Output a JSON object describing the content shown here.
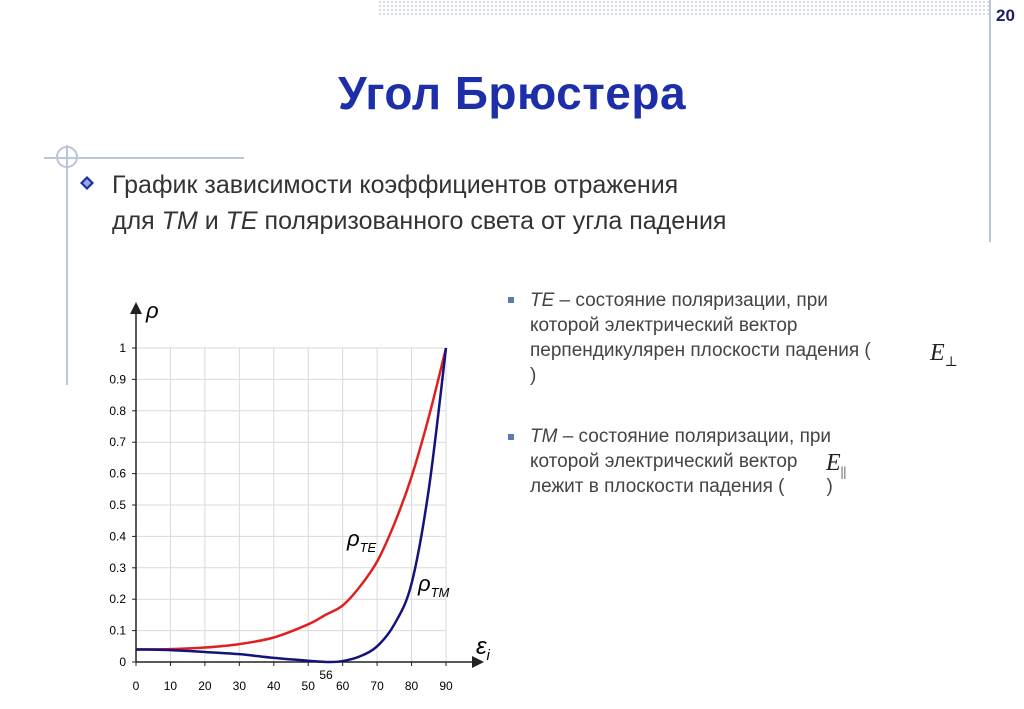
{
  "page_number": "20",
  "title": "Угол Брюстера",
  "main_bullet": {
    "line1": "График зависимости коэффициентов отражения",
    "line2_pre": "для ",
    "line2_tm": "TM",
    "line2_mid": " и ",
    "line2_te": "TE",
    "line2_post": " поляризованного света от угла падения"
  },
  "te_item": {
    "abbr": "TE",
    "line1": " – состояние поляризации, при",
    "line2": "которой электрический вектор",
    "line3": "перпендикулярен плоскости падения (",
    "line4": ")",
    "vector_symbol": "E",
    "vector_sub": "⊥"
  },
  "tm_item": {
    "abbr": "TM",
    "line1": " – состояние поляризации, при",
    "line2": "которой электрический вектор",
    "line3": "лежит в плоскости падения (",
    "line3_end": ")",
    "vector_symbol": "E",
    "vector_sub": "||"
  },
  "colors": {
    "title": "#1d2fa8",
    "te_curve": "#e02020",
    "tm_curve": "#13137a",
    "grid": "#d9d9d9"
  },
  "chart_data": {
    "type": "line",
    "ylabel": "ρ",
    "xlabel": "ε",
    "xlabel_sub": "i",
    "xlim": [
      0,
      90
    ],
    "ylim": [
      0,
      1
    ],
    "x_ticks": [
      "0",
      "10",
      "20",
      "30",
      "40",
      "50",
      "60",
      "70",
      "80",
      "90"
    ],
    "y_ticks": [
      "0",
      "0.1",
      "0.2",
      "0.3",
      "0.4",
      "0.5",
      "0.6",
      "0.7",
      "0.8",
      "0.9",
      "1"
    ],
    "grid": true,
    "annotation": "56",
    "series": [
      {
        "name": "ρTE",
        "label_main": "ρ",
        "label_sub": "TE",
        "x": [
          0,
          10,
          20,
          30,
          40,
          50,
          55,
          60,
          65,
          70,
          75,
          80,
          85,
          90
        ],
        "y": [
          0.04,
          0.041,
          0.046,
          0.057,
          0.078,
          0.12,
          0.15,
          0.18,
          0.24,
          0.32,
          0.44,
          0.59,
          0.78,
          1.0
        ]
      },
      {
        "name": "ρTM",
        "label_main": "ρ",
        "label_sub": "TM",
        "x": [
          0,
          10,
          20,
          30,
          40,
          50,
          56,
          60,
          65,
          70,
          75,
          80,
          85,
          90
        ],
        "y": [
          0.04,
          0.038,
          0.032,
          0.025,
          0.013,
          0.004,
          0.0,
          0.003,
          0.018,
          0.05,
          0.12,
          0.25,
          0.55,
          1.0
        ]
      }
    ]
  }
}
